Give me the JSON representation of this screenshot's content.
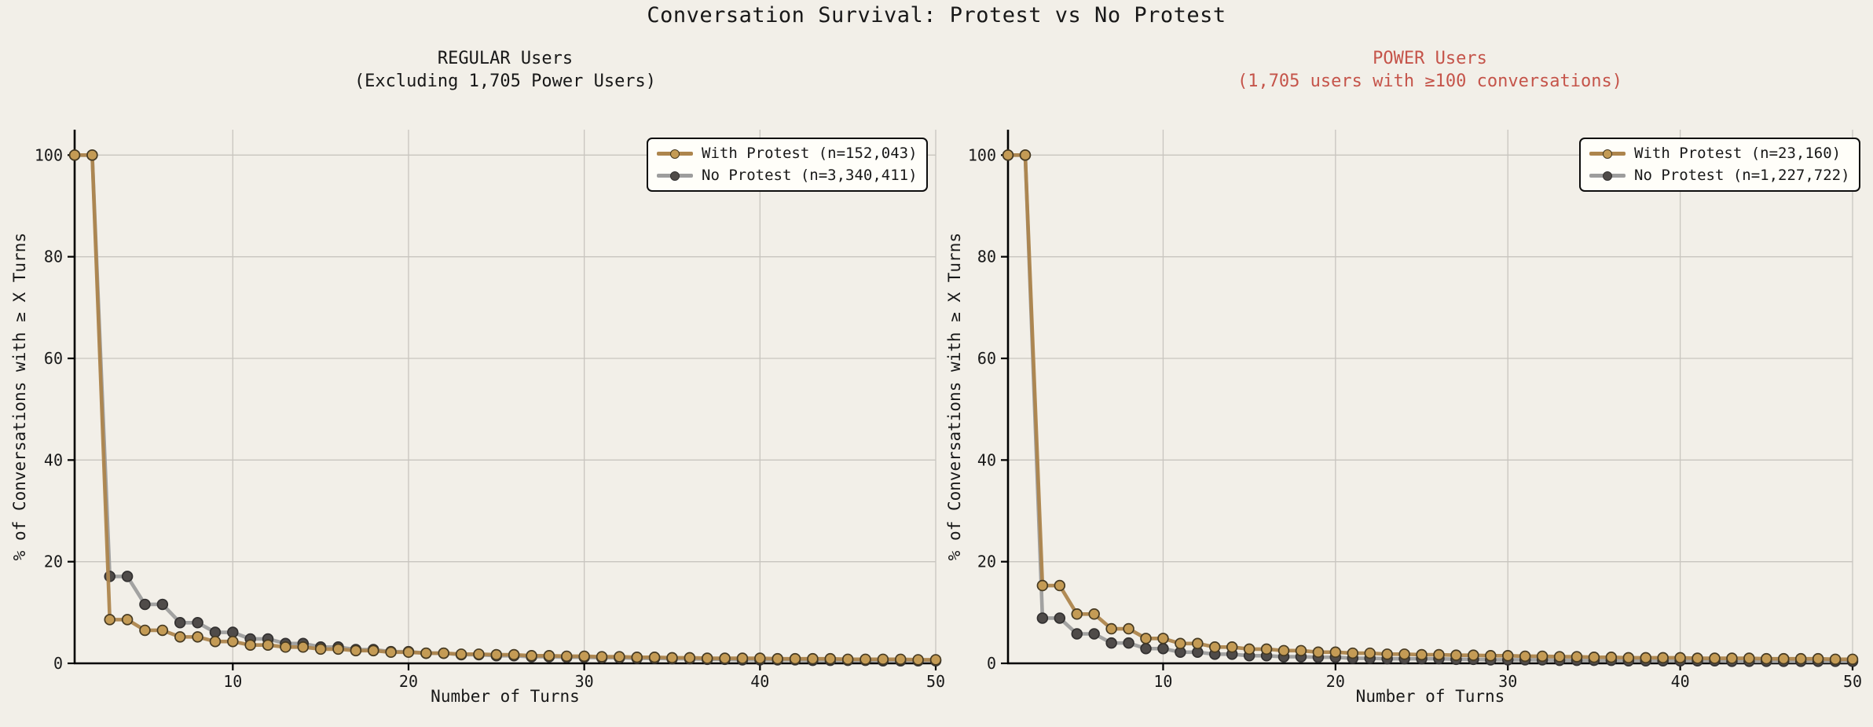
{
  "page": {
    "title": "Conversation Survival: Protest vs No Protest"
  },
  "colors": {
    "background": "#f2efe8",
    "text": "#181818",
    "grid": "#c8c5bf",
    "axis": "#000000",
    "legend_bg": "#fffef9",
    "power_title": "#c5544a",
    "with_protest_line": "#ad854d",
    "with_protest_marker": "#c49b55",
    "with_protest_marker_edge": "#463a22",
    "no_protest_line": "#9d9d9d",
    "no_protest_marker": "#4f4b49",
    "no_protest_marker_edge": "#323030"
  },
  "chart_data": [
    {
      "type": "line",
      "title_lines": [
        "REGULAR Users",
        "(Excluding 1,705 Power Users)"
      ],
      "xlabel": "Number of Turns",
      "ylabel": "% of Conversations with ≥ X Turns",
      "xlim": [
        1,
        50
      ],
      "ylim": [
        0,
        105
      ],
      "xticks": [
        10,
        20,
        30,
        40,
        50
      ],
      "yticks": [
        0,
        20,
        40,
        60,
        80,
        100
      ],
      "grid": true,
      "legend_position": "upper right",
      "x": [
        1,
        2,
        3,
        4,
        5,
        6,
        7,
        8,
        9,
        10,
        11,
        12,
        13,
        14,
        15,
        16,
        17,
        18,
        19,
        20,
        21,
        22,
        23,
        24,
        25,
        26,
        27,
        28,
        29,
        30,
        31,
        32,
        33,
        34,
        35,
        36,
        37,
        38,
        39,
        40,
        41,
        42,
        43,
        44,
        45,
        46,
        47,
        48,
        49,
        50
      ],
      "series": [
        {
          "name": "With Protest (n=152,043)",
          "color_key": "with_protest",
          "values": [
            100,
            100,
            8.6,
            8.6,
            6.5,
            6.5,
            5.2,
            5.2,
            4.3,
            4.3,
            3.6,
            3.6,
            3.2,
            3.2,
            2.8,
            2.8,
            2.5,
            2.5,
            2.2,
            2.2,
            2.0,
            2.0,
            1.8,
            1.8,
            1.7,
            1.7,
            1.5,
            1.5,
            1.4,
            1.4,
            1.3,
            1.3,
            1.2,
            1.2,
            1.1,
            1.1,
            1.0,
            1.0,
            1.0,
            1.0,
            0.9,
            0.9,
            0.9,
            0.9,
            0.8,
            0.8,
            0.8,
            0.8,
            0.7,
            0.7
          ]
        },
        {
          "name": "No Protest (n=3,340,411)",
          "color_key": "no_protest",
          "values": [
            100,
            100,
            17.1,
            17.1,
            11.6,
            11.6,
            8.0,
            8.0,
            6.1,
            6.1,
            4.8,
            4.8,
            3.9,
            3.9,
            3.2,
            3.2,
            2.7,
            2.7,
            2.3,
            2.3,
            2.0,
            2.0,
            1.7,
            1.7,
            1.5,
            1.5,
            1.3,
            1.3,
            1.2,
            1.2,
            1.1,
            1.1,
            1.0,
            1.0,
            0.9,
            0.9,
            0.8,
            0.8,
            0.7,
            0.7,
            0.7,
            0.7,
            0.6,
            0.6,
            0.6,
            0.6,
            0.5,
            0.5,
            0.5,
            0.5
          ]
        }
      ]
    },
    {
      "type": "line",
      "title_lines": [
        "POWER Users",
        "(1,705 users with ≥100 conversations)"
      ],
      "xlabel": "Number of Turns",
      "ylabel": "% of Conversations with ≥ X Turns",
      "xlim": [
        1,
        50
      ],
      "ylim": [
        0,
        105
      ],
      "xticks": [
        10,
        20,
        30,
        40,
        50
      ],
      "yticks": [
        0,
        20,
        40,
        60,
        80,
        100
      ],
      "grid": true,
      "legend_position": "upper right",
      "x": [
        1,
        2,
        3,
        4,
        5,
        6,
        7,
        8,
        9,
        10,
        11,
        12,
        13,
        14,
        15,
        16,
        17,
        18,
        19,
        20,
        21,
        22,
        23,
        24,
        25,
        26,
        27,
        28,
        29,
        30,
        31,
        32,
        33,
        34,
        35,
        36,
        37,
        38,
        39,
        40,
        41,
        42,
        43,
        44,
        45,
        46,
        47,
        48,
        49,
        50
      ],
      "series": [
        {
          "name": "With Protest (n=23,160)",
          "color_key": "with_protest",
          "values": [
            100,
            100,
            15.3,
            15.3,
            9.7,
            9.7,
            6.8,
            6.8,
            4.9,
            4.9,
            3.9,
            3.9,
            3.2,
            3.2,
            2.8,
            2.8,
            2.5,
            2.5,
            2.2,
            2.2,
            2.0,
            2.0,
            1.8,
            1.8,
            1.7,
            1.7,
            1.6,
            1.6,
            1.5,
            1.5,
            1.4,
            1.4,
            1.3,
            1.3,
            1.2,
            1.2,
            1.1,
            1.1,
            1.1,
            1.1,
            1.0,
            1.0,
            1.0,
            1.0,
            0.9,
            0.9,
            0.9,
            0.9,
            0.8,
            0.8
          ]
        },
        {
          "name": "No Protest (n=1,227,722)",
          "color_key": "no_protest",
          "values": [
            100,
            100,
            8.9,
            8.9,
            5.8,
            5.8,
            4.0,
            4.0,
            2.9,
            2.9,
            2.2,
            2.2,
            1.8,
            1.8,
            1.5,
            1.5,
            1.3,
            1.3,
            1.2,
            1.2,
            1.0,
            1.0,
            0.9,
            0.9,
            0.9,
            0.9,
            0.8,
            0.8,
            0.7,
            0.7,
            0.7,
            0.7,
            0.6,
            0.6,
            0.6,
            0.6,
            0.5,
            0.5,
            0.5,
            0.5,
            0.5,
            0.5,
            0.4,
            0.4,
            0.4,
            0.4,
            0.4,
            0.4,
            0.4,
            0.4
          ]
        }
      ]
    }
  ]
}
